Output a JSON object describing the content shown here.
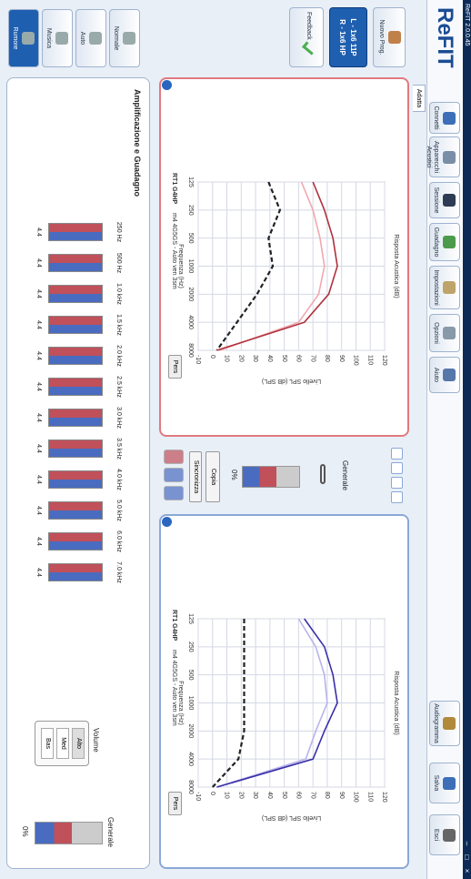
{
  "window": {
    "title": "ReFIT 2.0.0.45",
    "controls": [
      "–",
      "□",
      "×"
    ]
  },
  "toolbar": {
    "logo": "ReFIT",
    "buttons": [
      "Connetti",
      "Apparecchi Acustici",
      "Sessione",
      "Guadagno",
      "Impostazioni",
      "Opzioni",
      "Aiuto"
    ],
    "right_buttons": [
      "Audiogramma",
      "Salva",
      "Esci"
    ],
    "tab": "Adatta"
  },
  "sidebar": {
    "program": "Nuovo Prog.",
    "devices": [
      "L - 1x6 11P",
      "R - 1x6 HP"
    ],
    "feedback": "Feedback",
    "modes": [
      "Normale",
      "Auto",
      "Musica",
      "Rumore"
    ]
  },
  "middle": {
    "label": "Generale",
    "value_label": "0%",
    "copy": "Copia",
    "sync": "Sincronizza"
  },
  "charts": [
    {
      "title": "Risposta Acustica (dB)",
      "x_label": "Frequenza (Hz)",
      "y_label": "Livello SPL (dB SPL)",
      "device": "RT1 G4HP",
      "device_detail": "m4 4G5GS - Auto ven 3sm",
      "button": "Pers",
      "color": "#e07a80",
      "xlim": [
        125,
        8000
      ],
      "xticks": [
        125,
        250,
        500,
        1000,
        2000,
        4000,
        8000
      ],
      "ylim": [
        -10,
        120
      ],
      "yticks": [
        -10,
        0,
        10,
        20,
        30,
        40,
        50,
        60,
        70,
        80,
        90,
        100,
        110,
        120
      ],
      "x": [
        125,
        250,
        500,
        1000,
        2000,
        4000,
        8000
      ],
      "series": [
        {
          "color": "#222222",
          "dashed": true,
          "values": [
            39,
            47,
            39,
            42,
            31,
            17,
            3
          ]
        },
        {
          "color": "#f0a8b0",
          "dashed": false,
          "values": [
            62,
            70,
            75,
            78,
            74,
            60,
            5
          ]
        },
        {
          "color": "#b0303c",
          "dashed": false,
          "values": [
            70,
            78,
            84,
            87,
            81,
            64,
            3
          ]
        }
      ]
    },
    {
      "title": "Risposta Acustica (dB)",
      "x_label": "Frequenza (Hz)",
      "y_label": "Livello SPL (dB SPL)",
      "device": "RT1 G4HP",
      "device_detail": "m4 4G5GS - Auto ven 3sm",
      "button": "Pers",
      "color": "#8aa8d8",
      "xlim": [
        125,
        8000
      ],
      "xticks": [
        125,
        250,
        500,
        1000,
        2000,
        4000,
        8000
      ],
      "ylim": [
        -10,
        120
      ],
      "yticks": [
        -10,
        0,
        10,
        20,
        30,
        40,
        50,
        60,
        70,
        80,
        90,
        100,
        110,
        120
      ],
      "x": [
        125,
        250,
        500,
        1000,
        2000,
        4000,
        8000
      ],
      "series": [
        {
          "color": "#222222",
          "dashed": true,
          "values": [
            22,
            22,
            22,
            22,
            22,
            18,
            0
          ]
        },
        {
          "color": "#b8b4ec",
          "dashed": false,
          "values": [
            60,
            72,
            78,
            80,
            72,
            65,
            3
          ]
        },
        {
          "color": "#3a2fa8",
          "dashed": false,
          "values": [
            64,
            78,
            84,
            87,
            78,
            70,
            3
          ]
        }
      ]
    }
  ],
  "gain_panel": {
    "title": "Amplificazione e Guadagno",
    "bands": [
      {
        "freq": "250 Hz",
        "value": "4.4"
      },
      {
        "freq": "500 Hz",
        "value": "4.4"
      },
      {
        "freq": "1.0 kHz",
        "value": "4.4"
      },
      {
        "freq": "1.5 kHz",
        "value": "4.4"
      },
      {
        "freq": "2.0 kHz",
        "value": "4.4"
      },
      {
        "freq": "2.5 kHz",
        "value": "4.4"
      },
      {
        "freq": "3.0 kHz",
        "value": "4.4"
      },
      {
        "freq": "3.5 kHz",
        "value": "4.4"
      },
      {
        "freq": "4.0 kHz",
        "value": "4.4"
      },
      {
        "freq": "5.0 kHz",
        "value": "4.4"
      },
      {
        "freq": "6.0 kHz",
        "value": "4.4"
      },
      {
        "freq": "7.0 kHz",
        "value": "4.4"
      }
    ],
    "volume": {
      "label": "Volume",
      "options": [
        "Alto",
        "Med",
        "Bas"
      ]
    },
    "overall": {
      "label": "Generale",
      "value_label": "0%"
    }
  }
}
